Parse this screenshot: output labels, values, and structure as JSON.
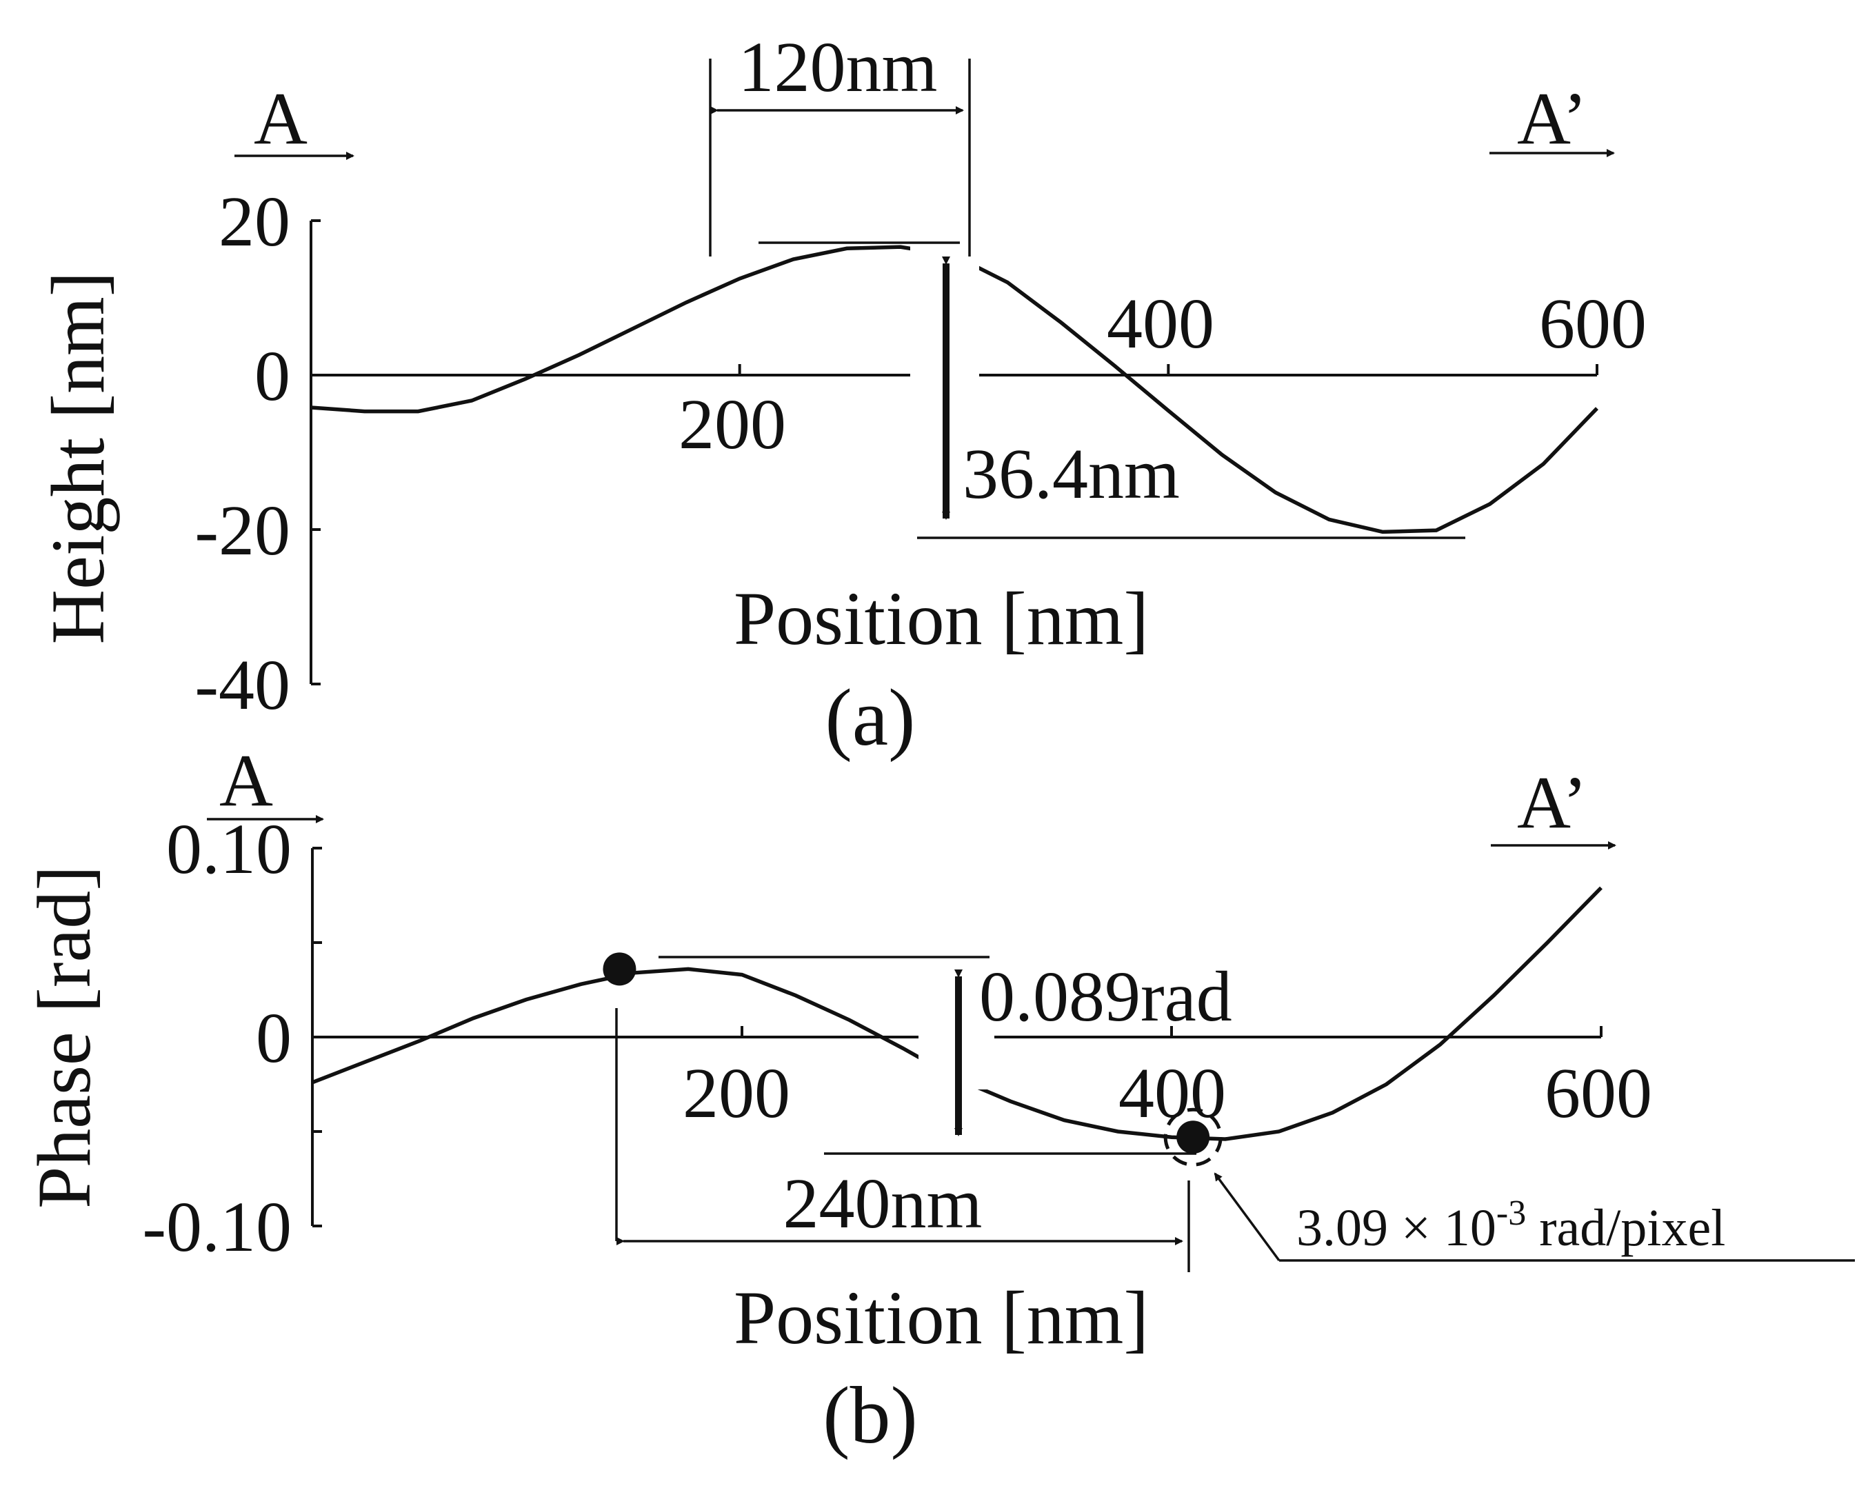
{
  "chart_data": [
    {
      "type": "line",
      "panel_label": "(a)",
      "direction_start": "A",
      "direction_end": "A’",
      "xlabel": "Position [nm]",
      "ylabel": "Height [nm]",
      "xlim": [
        0,
        600
      ],
      "ylim": [
        -40,
        20
      ],
      "x_ticks": [
        200,
        400,
        600
      ],
      "y_ticks": [
        20,
        0,
        -20,
        -40
      ],
      "x_tick_labels": [
        "200",
        "400",
        "600"
      ],
      "y_tick_labels": [
        "20",
        "0",
        "-20",
        "-40"
      ],
      "grid": false,
      "series": [
        {
          "x": [
            0,
            25,
            50,
            75,
            100,
            125,
            150,
            175,
            200,
            225,
            250,
            275,
            300,
            325,
            350,
            375,
            400,
            425,
            450,
            475,
            500,
            525,
            550,
            575,
            600
          ],
          "y": [
            -4.2,
            -4.7,
            -4.7,
            -3.3,
            -0.5,
            2.6,
            6.0,
            9.4,
            12.5,
            15.0,
            16.4,
            16.6,
            15.5,
            12.0,
            6.8,
            1.2,
            -4.6,
            -10.3,
            -15.2,
            -18.7,
            -20.3,
            -20.1,
            -16.7,
            -11.5,
            -4.3
          ]
        }
      ],
      "annotations": [
        {
          "text": "120nm"
        },
        {
          "text": "36.4nm"
        }
      ]
    },
    {
      "type": "line",
      "panel_label": "(b)",
      "direction_start": "A",
      "direction_end": "A’",
      "xlabel": "Position [nm]",
      "ylabel": "Phase [rad]",
      "xlim": [
        0,
        600
      ],
      "ylim": [
        -0.1,
        0.1
      ],
      "x_ticks": [
        200,
        400,
        600
      ],
      "y_ticks": [
        0.1,
        0,
        -0.1
      ],
      "x_tick_labels": [
        "200",
        "400",
        "600"
      ],
      "y_tick_labels": [
        "0.10",
        "0",
        "-0.10"
      ],
      "grid": false,
      "series": [
        {
          "x": [
            0,
            25,
            50,
            75,
            100,
            125,
            150,
            175,
            200,
            225,
            250,
            275,
            300,
            325,
            350,
            375,
            400,
            425,
            450,
            475,
            500,
            525,
            550,
            575,
            600
          ],
          "y": [
            -0.024,
            -0.013,
            -0.002,
            0.01,
            0.02,
            0.028,
            0.034,
            0.036,
            0.033,
            0.022,
            0.009,
            -0.006,
            -0.022,
            -0.034,
            -0.044,
            -0.05,
            -0.053,
            -0.054,
            -0.05,
            -0.04,
            -0.025,
            -0.004,
            0.022,
            0.05,
            0.079
          ]
        }
      ],
      "markers": [
        {
          "x": 143,
          "y": 0.036
        },
        {
          "x": 410,
          "y": -0.053
        }
      ],
      "annotations": [
        {
          "text": "0.089rad"
        },
        {
          "text": "240nm"
        },
        {
          "text": "3.09 × 10",
          "superscript": "-3",
          "suffix": " rad/pixel"
        }
      ]
    }
  ]
}
